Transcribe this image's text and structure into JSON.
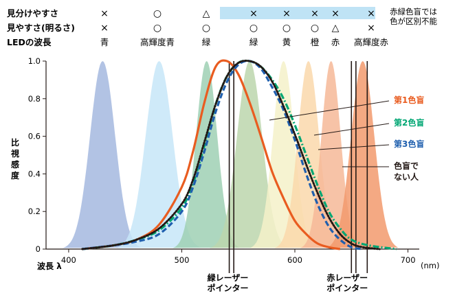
{
  "header": {
    "row_labels": [
      "見分けやすさ",
      "見やすさ(明るさ)",
      "LEDの波長"
    ],
    "note_lines": [
      "赤緑色盲では",
      "色が区別不能"
    ],
    "columns": [
      {
        "band": "青",
        "ease": "×",
        "brightness": "×"
      },
      {
        "band": "高輝度青",
        "ease": "○",
        "brightness": "○"
      },
      {
        "band": "緑",
        "ease": "△",
        "brightness": "○"
      },
      {
        "band": "緑",
        "ease": "×",
        "brightness": "○"
      },
      {
        "band": "黄",
        "ease": "×",
        "brightness": "○"
      },
      {
        "band": "橙",
        "ease": "×",
        "brightness": "○"
      },
      {
        "band": "赤",
        "ease": "×",
        "brightness": "△"
      },
      {
        "band": "高輝度赤",
        "ease": "×",
        "brightness": "×"
      }
    ]
  },
  "chart_data": {
    "type": "line",
    "xlabel": "波長 λ",
    "xunit": "(nm)",
    "ylabel": "比視感度",
    "xlim": [
      380,
      710
    ],
    "ylim": [
      0,
      1.0
    ],
    "x_ticks": [
      "400",
      "500",
      "600",
      "700"
    ],
    "y_ticks": [
      "0",
      "0.2",
      "0.4",
      "0.6",
      "0.8",
      "1.0"
    ],
    "series": [
      {
        "name": "第1色盲",
        "color": "#e95c20",
        "style": "solid",
        "points": [
          [
            412,
            0
          ],
          [
            440,
            0.02
          ],
          [
            460,
            0.05
          ],
          [
            480,
            0.13
          ],
          [
            500,
            0.33
          ],
          [
            510,
            0.52
          ],
          [
            520,
            0.78
          ],
          [
            530,
            0.97
          ],
          [
            540,
            1.0
          ],
          [
            550,
            0.93
          ],
          [
            560,
            0.78
          ],
          [
            570,
            0.6
          ],
          [
            580,
            0.41
          ],
          [
            590,
            0.27
          ],
          [
            600,
            0.15
          ],
          [
            610,
            0.08
          ],
          [
            620,
            0.03
          ],
          [
            630,
            0.01
          ],
          [
            640,
            0
          ]
        ]
      },
      {
        "name": "第2色盲",
        "color": "#00a673",
        "style": "dashdot",
        "points": [
          [
            412,
            0
          ],
          [
            440,
            0.02
          ],
          [
            460,
            0.05
          ],
          [
            480,
            0.1
          ],
          [
            500,
            0.22
          ],
          [
            510,
            0.35
          ],
          [
            520,
            0.55
          ],
          [
            530,
            0.77
          ],
          [
            540,
            0.92
          ],
          [
            550,
            0.99
          ],
          [
            560,
            1.0
          ],
          [
            570,
            0.97
          ],
          [
            580,
            0.9
          ],
          [
            590,
            0.8
          ],
          [
            600,
            0.66
          ],
          [
            610,
            0.5
          ],
          [
            620,
            0.34
          ],
          [
            630,
            0.2
          ],
          [
            640,
            0.11
          ],
          [
            650,
            0.05
          ],
          [
            665,
            0.02
          ],
          [
            690,
            0
          ]
        ]
      },
      {
        "name": "第3色盲",
        "color": "#1f5fae",
        "style": "dashed",
        "points": [
          [
            412,
            0
          ],
          [
            440,
            0.02
          ],
          [
            460,
            0.04
          ],
          [
            480,
            0.08
          ],
          [
            500,
            0.2
          ],
          [
            510,
            0.33
          ],
          [
            520,
            0.52
          ],
          [
            530,
            0.73
          ],
          [
            540,
            0.89
          ],
          [
            550,
            0.98
          ],
          [
            560,
            1.0
          ],
          [
            570,
            0.96
          ],
          [
            580,
            0.86
          ],
          [
            590,
            0.74
          ],
          [
            600,
            0.58
          ],
          [
            610,
            0.4
          ],
          [
            620,
            0.24
          ],
          [
            630,
            0.12
          ],
          [
            640,
            0.05
          ],
          [
            650,
            0.01
          ],
          [
            660,
            0
          ]
        ]
      },
      {
        "name": "色盲でない人",
        "label_lines": [
          "色盲で",
          "ない人"
        ],
        "color": "#231815",
        "style": "dotted",
        "points": [
          [
            412,
            0
          ],
          [
            440,
            0.02
          ],
          [
            460,
            0.05
          ],
          [
            480,
            0.11
          ],
          [
            500,
            0.24
          ],
          [
            510,
            0.37
          ],
          [
            520,
            0.57
          ],
          [
            530,
            0.77
          ],
          [
            540,
            0.92
          ],
          [
            550,
            0.99
          ],
          [
            560,
            1.0
          ],
          [
            570,
            0.97
          ],
          [
            580,
            0.89
          ],
          [
            590,
            0.76
          ],
          [
            600,
            0.61
          ],
          [
            610,
            0.45
          ],
          [
            620,
            0.3
          ],
          [
            630,
            0.17
          ],
          [
            640,
            0.08
          ],
          [
            650,
            0.03
          ],
          [
            660,
            0.01
          ],
          [
            675,
            0
          ]
        ]
      }
    ],
    "bands": [
      {
        "name": "青",
        "center": 430,
        "fwhm": 26,
        "color": "#a5b8df"
      },
      {
        "name": "高輝度青",
        "center": 480,
        "fwhm": 28,
        "color": "#c7e6f8"
      },
      {
        "name": "緑",
        "center": 522,
        "fwhm": 22,
        "color": "#9fd0b4"
      },
      {
        "name": "緑",
        "center": 560,
        "fwhm": 26,
        "color": "#bcd6ad"
      },
      {
        "name": "黄",
        "center": 590,
        "fwhm": 22,
        "color": "#f5f1c9"
      },
      {
        "name": "橙",
        "center": 612,
        "fwhm": 22,
        "color": "#fad8ac"
      },
      {
        "name": "赤",
        "center": 632,
        "fwhm": 20,
        "color": "#f6b898"
      },
      {
        "name": "高輝度赤",
        "center": 660,
        "fwhm": 24,
        "color": "#f29a6d"
      }
    ],
    "annotations": [
      {
        "lines": [
          "緑レーザー",
          "ポインター"
        ],
        "x": [
          542,
          546
        ]
      },
      {
        "lines": [
          "赤レーザー",
          "ポインター"
        ],
        "x": [
          650,
          654,
          664
        ]
      }
    ],
    "grid": false
  },
  "colors": {
    "note_bg": "#bfe3f5",
    "axis": "#231815"
  }
}
